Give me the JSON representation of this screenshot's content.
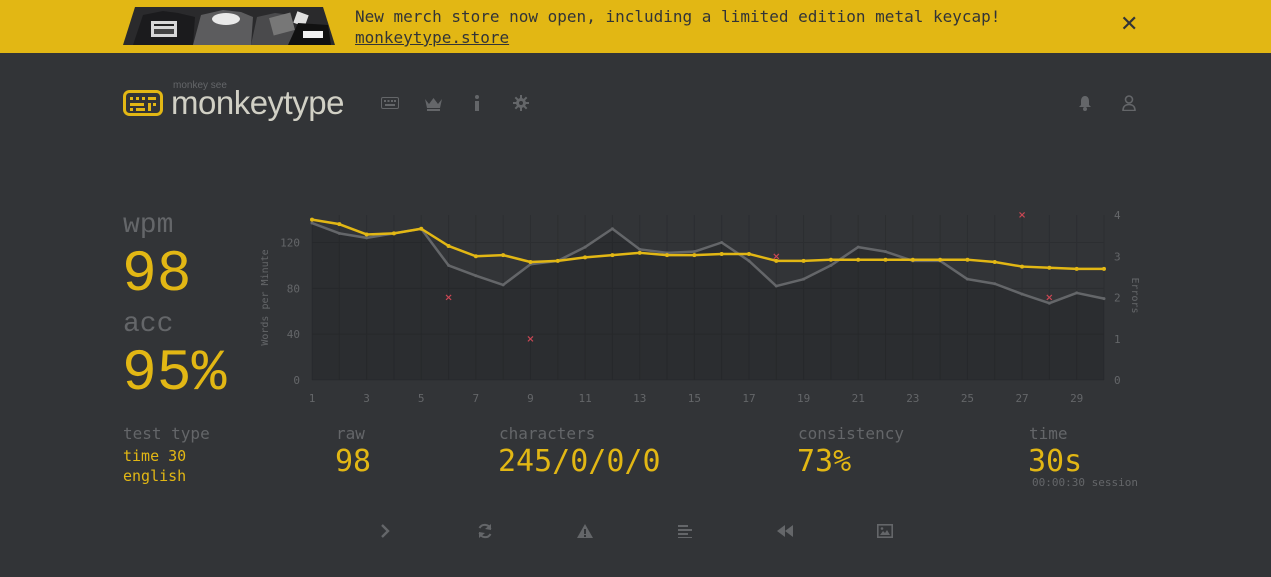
{
  "colors": {
    "background": "#323437",
    "accent": "#e2b714",
    "text": "#d1d0c5",
    "sub": "#646669",
    "error": "#ca4754"
  },
  "banner": {
    "message": "New merch store now open, including a limited edition metal keycap!",
    "link_text": "monkeytype.store",
    "close_icon": "close-icon"
  },
  "header": {
    "logo_sub": "monkey see",
    "logo_title": "monkeytype",
    "nav_icons": [
      "keyboard-icon",
      "crown-icon",
      "info-icon",
      "gear-icon"
    ],
    "right_icons": [
      "bell-icon",
      "user-icon"
    ]
  },
  "result": {
    "wpm_label": "wpm",
    "wpm_value": "98",
    "acc_label": "acc",
    "acc_value": "95%",
    "test_type_label": "test type",
    "test_type_mode": "time 30",
    "test_type_language": "english",
    "raw_label": "raw",
    "raw_value": "98",
    "characters_label": "characters",
    "characters_value": "245/0/0/0",
    "consistency_label": "consistency",
    "consistency_value": "73%",
    "time_label": "time",
    "time_value": "30s",
    "session_text": "00:00:30 session"
  },
  "actions": [
    "next-test-icon",
    "restart-icon",
    "report-icon",
    "words-history-icon",
    "replay-icon",
    "screenshot-icon"
  ],
  "chart_data": {
    "type": "line",
    "xlabel": "",
    "ylabel": "Words per Minute",
    "y2label": "Errors",
    "xlim": [
      1,
      30
    ],
    "ylim": [
      0,
      144
    ],
    "y2lim": [
      0,
      4
    ],
    "x_ticks": [
      1,
      3,
      5,
      7,
      9,
      11,
      13,
      15,
      17,
      19,
      21,
      23,
      25,
      27,
      29
    ],
    "y_ticks": [
      0,
      40,
      80,
      120
    ],
    "y2_ticks": [
      0,
      1,
      2,
      3,
      4
    ],
    "grid": true,
    "x": [
      1,
      2,
      3,
      4,
      5,
      6,
      7,
      8,
      9,
      10,
      11,
      12,
      13,
      14,
      15,
      16,
      17,
      18,
      19,
      20,
      21,
      22,
      23,
      24,
      25,
      26,
      27,
      28,
      29,
      30
    ],
    "series": [
      {
        "values": [
          140,
          136,
          127,
          128,
          132,
          117,
          108,
          109,
          103,
          104,
          107,
          109,
          111,
          109,
          109,
          110,
          110,
          104,
          104,
          105,
          105,
          105,
          105,
          105,
          105,
          103,
          99,
          98,
          97,
          97
        ]
      },
      {
        "values": [
          137,
          128,
          124,
          128,
          132,
          100,
          91,
          83,
          101,
          104,
          116,
          132,
          114,
          111,
          112,
          120,
          104,
          82,
          88,
          100,
          116,
          112,
          104,
          104,
          88,
          84,
          75,
          67,
          76,
          71
        ]
      }
    ],
    "errors": {
      "x": [
        6,
        9,
        18,
        27,
        28
      ],
      "values": [
        2,
        1,
        3,
        4,
        2
      ]
    }
  }
}
